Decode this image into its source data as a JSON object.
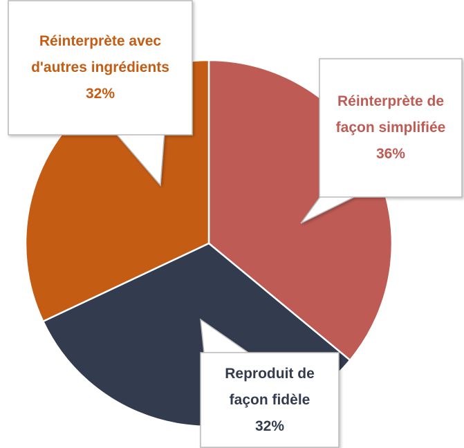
{
  "chart_data": {
    "type": "pie",
    "categories": [
      "Réinterprète de façon simplifiée",
      "Reproduit de façon fidèle",
      "Réinterprète avec d'autres ingrédients"
    ],
    "values": [
      36,
      32,
      32
    ],
    "value_labels": [
      "36%",
      "32%",
      "32%"
    ],
    "colors": [
      "#bf5b55",
      "#333c4f",
      "#c55c14"
    ]
  }
}
